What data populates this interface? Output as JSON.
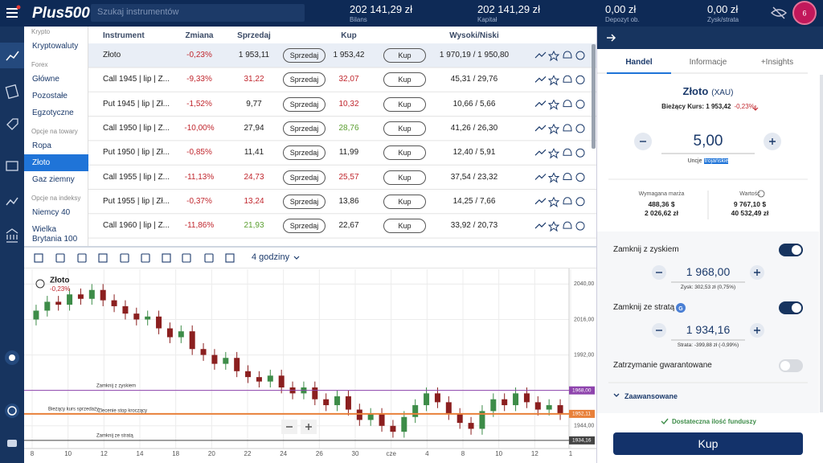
{
  "header": {
    "logo": "Plus500",
    "search_placeholder": "Szukaj instrumentów",
    "stats": [
      {
        "value": "202 141,29 zł",
        "label": "Bilans"
      },
      {
        "value": "202 141,29 zł",
        "label": "Kapitał"
      },
      {
        "value": "0,00 zł",
        "label": "Depozyt ob."
      },
      {
        "value": "0,00 zł",
        "label": "Zysk/strata"
      }
    ],
    "avatar": "6"
  },
  "categories": [
    {
      "group": "Krypto",
      "items": [
        {
          "label": "Kryptowaluty"
        }
      ]
    },
    {
      "group": "Forex",
      "items": [
        {
          "label": "Główne"
        },
        {
          "label": "Pozostałe"
        },
        {
          "label": "Egzotyczne"
        }
      ]
    },
    {
      "group": "Opcje na towary",
      "items": [
        {
          "label": "Ropa"
        },
        {
          "label": "Złoto",
          "selected": true
        },
        {
          "label": "Gaz ziemny"
        }
      ]
    },
    {
      "group": "Opcje na indeksy",
      "items": [
        {
          "label": "Niemcy 40"
        },
        {
          "label": "Wielka Brytania 100"
        }
      ]
    }
  ],
  "table": {
    "headers": [
      "Instrument",
      "Zmiana",
      "Sprzedaj",
      "Kup",
      "Wysoki/Niski"
    ],
    "sell_button": "Sprzedaj",
    "buy_button": "Kup",
    "rows": [
      {
        "instrument": "Złoto",
        "change": "-0,23%",
        "sell": "1 953,11",
        "buy": "1 953,42",
        "high_low": "1 970,19 / 1 950,80",
        "sell_color": "#222222",
        "buy_color": "#222222"
      },
      {
        "instrument": "Call 1945 | lip | Z...",
        "change": "-9,33%",
        "sell": "31,22",
        "buy": "32,07",
        "high_low": "45,31 / 29,76",
        "sell_color": "#c0262d",
        "buy_color": "#c0262d"
      },
      {
        "instrument": "Put 1945 | lip | Zł...",
        "change": "-1,52%",
        "sell": "9,77",
        "buy": "10,32",
        "high_low": "10,66 / 5,66",
        "sell_color": "#222222",
        "buy_color": "#c0262d"
      },
      {
        "instrument": "Call 1950 | lip | Z...",
        "change": "-10,00%",
        "sell": "27,94",
        "buy": "28,76",
        "high_low": "41,26 / 26,30",
        "sell_color": "#222222",
        "buy_color": "#5a9e2f"
      },
      {
        "instrument": "Put 1950 | lip | Zł...",
        "change": "-0,85%",
        "sell": "11,41",
        "buy": "11,99",
        "high_low": "12,40 / 5,91",
        "sell_color": "#222222",
        "buy_color": "#222222"
      },
      {
        "instrument": "Call 1955 | lip | Z...",
        "change": "-11,13%",
        "sell": "24,73",
        "buy": "25,57",
        "high_low": "37,54 / 23,32",
        "sell_color": "#c0262d",
        "buy_color": "#c0262d"
      },
      {
        "instrument": "Put 1955 | lip | Zł...",
        "change": "-0,37%",
        "sell": "13,24",
        "buy": "13,86",
        "high_low": "14,25 / 7,66",
        "sell_color": "#c0262d",
        "buy_color": "#222222"
      },
      {
        "instrument": "Call 1960 | lip | Z...",
        "change": "-11,86%",
        "sell": "21,93",
        "buy": "22,67",
        "high_low": "33,92 / 20,73",
        "sell_color": "#5a9e2f",
        "buy_color": "#222222"
      }
    ]
  },
  "chart_toolbar": {
    "timeframe": "4 godziny"
  },
  "chart": {
    "type": "candlestick",
    "instrument": "Złoto",
    "change": "-0,23%",
    "ylim": [
      1933,
      2050
    ],
    "yticks": [
      {
        "value": 2040,
        "label": "2040,00"
      },
      {
        "value": 2016,
        "label": "2016,00"
      },
      {
        "value": 1992,
        "label": "1992,00"
      },
      {
        "value": 1968,
        "label": "1968,00"
      },
      {
        "value": 1944,
        "label": "1944,00"
      }
    ],
    "x_labels": [
      "8",
      "10",
      "12",
      "14",
      "18",
      "20",
      "22",
      "24",
      "26",
      "30",
      "cze",
      "4",
      "8",
      "10",
      "12",
      "1"
    ],
    "up_color": "#3d8c48",
    "down_color": "#8b1f1f",
    "open": [
      2016,
      2022,
      2028,
      2026,
      2033,
      2030,
      2036,
      2029,
      2025,
      2020,
      2016,
      2018,
      2010,
      2004,
      2008,
      1996,
      1992,
      1986,
      1990,
      1981,
      1977,
      1974,
      1978,
      1970,
      1966,
      1970,
      1962,
      1958,
      1964,
      1955,
      1948,
      1952,
      1944,
      1940,
      1950,
      1958,
      1966,
      1960,
      1952,
      1946,
      1942,
      1954,
      1962,
      1958,
      1966,
      1960,
      1955,
      1958
    ],
    "high": [
      2026,
      2032,
      2032,
      2037,
      2037,
      2040,
      2040,
      2033,
      2029,
      2024,
      2022,
      2022,
      2014,
      2012,
      2012,
      2000,
      1996,
      1994,
      1994,
      1985,
      1981,
      1982,
      1982,
      1974,
      1974,
      1974,
      1966,
      1968,
      1968,
      1959,
      1956,
      1956,
      1948,
      1954,
      1962,
      1970,
      1970,
      1964,
      1956,
      1950,
      1958,
      1966,
      1966,
      1970,
      1970,
      1964,
      1962,
      1962
    ],
    "low": [
      2012,
      2018,
      2022,
      2022,
      2026,
      2026,
      2025,
      2021,
      2016,
      2012,
      2012,
      2006,
      2000,
      2000,
      1992,
      1988,
      1982,
      1982,
      1977,
      1973,
      1970,
      1970,
      1966,
      1962,
      1962,
      1958,
      1954,
      1954,
      1951,
      1944,
      1944,
      1940,
      1936,
      1936,
      1946,
      1954,
      1956,
      1948,
      1942,
      1938,
      1938,
      1950,
      1954,
      1954,
      1956,
      1951,
      1951,
      1948
    ],
    "close": [
      2022,
      2028,
      2026,
      2033,
      2030,
      2036,
      2029,
      2025,
      2020,
      2016,
      2018,
      2010,
      2004,
      2008,
      1996,
      1992,
      1986,
      1990,
      1981,
      1977,
      1974,
      1978,
      1970,
      1966,
      1970,
      1962,
      1958,
      1964,
      1955,
      1948,
      1952,
      1944,
      1940,
      1950,
      1958,
      1966,
      1960,
      1952,
      1946,
      1942,
      1954,
      1962,
      1958,
      1966,
      1960,
      1955,
      1958,
      1952
    ],
    "levels": [
      {
        "label": "Zamknij z zyskiem",
        "value": 1968,
        "tag": "1968,00",
        "color": "#8e44ad"
      },
      {
        "label": "Bieżący kurs sprzedaży",
        "value": 1952.11,
        "tag": "1952,11",
        "color": "#e8803a"
      },
      {
        "label": "Zamknij ze stratą",
        "value": 1934.16,
        "tag": "1934,16",
        "color": "#444444"
      }
    ],
    "trailing_stop_label": "Zlecenie stop kroczący"
  },
  "trade_panel": {
    "tabs": [
      "Handel",
      "Informacje",
      "+Insights"
    ],
    "instrument": "Złoto",
    "symbol": "(XAU)",
    "current_rate_label": "Bieżący Kurs: 1 953,42",
    "current_change": "-0,23%",
    "amount": "5,00",
    "unit_prefix": "Uncje",
    "unit_highlight": "trojańskie",
    "margin_label": "Wymagana marża",
    "margin_values": [
      "488,36 $",
      "2 026,62 zł"
    ],
    "value_label": "Wartość",
    "value_values": [
      "9 767,10 $",
      "40 532,49 zł"
    ],
    "take_profit": {
      "label": "Zamknij z zyskiem",
      "value": "1 968,00",
      "note": "Zysk: 302,53 zł (0,75%)",
      "enabled": true
    },
    "stop_loss": {
      "label": "Zamknij ze stratą",
      "badge": "G",
      "value": "1 934,16",
      "note": "Strata: -399,88 zł (-0,99%)",
      "enabled": true
    },
    "guaranteed_stop": {
      "label": "Zatrzymanie gwarantowane",
      "enabled": false
    },
    "advanced": "Zaawansowane",
    "funds_note": "Dostateczna ilość funduszy",
    "buy": "Kup"
  }
}
